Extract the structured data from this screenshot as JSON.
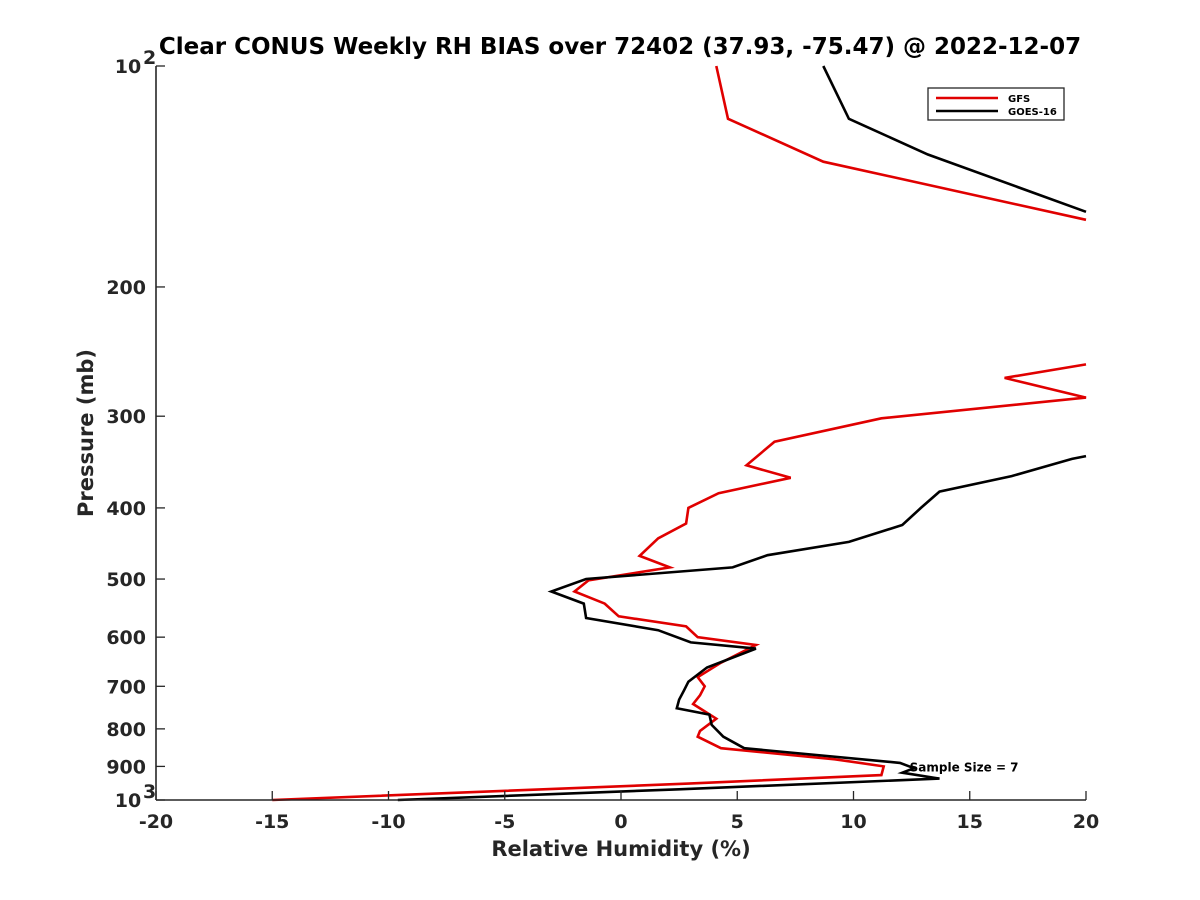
{
  "chart_data": {
    "type": "line",
    "title": "Clear CONUS Weekly RH BIAS over 72402 (37.93, -75.47) @ 2022-12-07",
    "xlabel": "Relative Humidity (%)",
    "ylabel": "Pressure (mb)",
    "xlim": [
      -20,
      20
    ],
    "ylim": [
      100,
      1000
    ],
    "yscale": "log",
    "y_reversed": true,
    "grid": false,
    "legend_position": "top-right",
    "x_ticks": [
      {
        "value": -20,
        "label": "-20"
      },
      {
        "value": -15,
        "label": "-15"
      },
      {
        "value": -10,
        "label": "-10"
      },
      {
        "value": -5,
        "label": "-5"
      },
      {
        "value": 0,
        "label": "0"
      },
      {
        "value": 5,
        "label": "5"
      },
      {
        "value": 10,
        "label": "10"
      },
      {
        "value": 15,
        "label": "15"
      },
      {
        "value": 20,
        "label": "20"
      }
    ],
    "y_ticks": [
      {
        "value": 100,
        "label": "10",
        "sup": "2"
      },
      {
        "value": 200,
        "label": "200"
      },
      {
        "value": 300,
        "label": "300"
      },
      {
        "value": 400,
        "label": "400"
      },
      {
        "value": 500,
        "label": "500"
      },
      {
        "value": 600,
        "label": "600"
      },
      {
        "value": 700,
        "label": "700"
      },
      {
        "value": 800,
        "label": "800"
      },
      {
        "value": 900,
        "label": "900"
      },
      {
        "value": 1000,
        "label": "10",
        "sup": "3"
      }
    ],
    "series": [
      {
        "name": "GFS",
        "color": "#e00000",
        "points": [
          {
            "x": 4.1,
            "y": 100
          },
          {
            "x": 4.6,
            "y": 118
          },
          {
            "x": 8.7,
            "y": 135
          },
          {
            "x": 20.0,
            "y": 162
          },
          {
            "x": null,
            "y": null
          },
          {
            "x": 20.0,
            "y": 255
          },
          {
            "x": 16.5,
            "y": 266
          },
          {
            "x": 20.0,
            "y": 283
          },
          {
            "x": 11.2,
            "y": 302
          },
          {
            "x": 6.6,
            "y": 325
          },
          {
            "x": 5.4,
            "y": 350
          },
          {
            "x": 7.3,
            "y": 364
          },
          {
            "x": 4.2,
            "y": 382
          },
          {
            "x": 2.9,
            "y": 400
          },
          {
            "x": 2.8,
            "y": 420
          },
          {
            "x": 1.6,
            "y": 440
          },
          {
            "x": 0.8,
            "y": 465
          },
          {
            "x": 2.1,
            "y": 482
          },
          {
            "x": -1.4,
            "y": 502
          },
          {
            "x": -2.0,
            "y": 520
          },
          {
            "x": -0.7,
            "y": 540
          },
          {
            "x": -0.1,
            "y": 562
          },
          {
            "x": 2.8,
            "y": 580
          },
          {
            "x": 3.3,
            "y": 600
          },
          {
            "x": 5.8,
            "y": 615
          },
          {
            "x": 4.3,
            "y": 650
          },
          {
            "x": 3.3,
            "y": 680
          },
          {
            "x": 3.6,
            "y": 700
          },
          {
            "x": 3.4,
            "y": 720
          },
          {
            "x": 3.1,
            "y": 740
          },
          {
            "x": 4.1,
            "y": 775
          },
          {
            "x": 3.4,
            "y": 805
          },
          {
            "x": 3.3,
            "y": 820
          },
          {
            "x": 4.3,
            "y": 850
          },
          {
            "x": 9.2,
            "y": 880
          },
          {
            "x": 11.3,
            "y": 900
          },
          {
            "x": 11.2,
            "y": 925
          },
          {
            "x": 2.9,
            "y": 950
          },
          {
            "x": -15.0,
            "y": 1000
          }
        ]
      },
      {
        "name": "GOES-16",
        "color": "#000000",
        "points": [
          {
            "x": 8.7,
            "y": 100
          },
          {
            "x": 9.8,
            "y": 118
          },
          {
            "x": 13.2,
            "y": 132
          },
          {
            "x": 20.0,
            "y": 158
          },
          {
            "x": null,
            "y": null
          },
          {
            "x": 20.0,
            "y": 340
          },
          {
            "x": 19.4,
            "y": 343
          },
          {
            "x": 16.8,
            "y": 362
          },
          {
            "x": 13.7,
            "y": 380
          },
          {
            "x": 12.9,
            "y": 400
          },
          {
            "x": 12.1,
            "y": 422
          },
          {
            "x": 9.8,
            "y": 445
          },
          {
            "x": 6.3,
            "y": 464
          },
          {
            "x": 4.8,
            "y": 482
          },
          {
            "x": -1.5,
            "y": 500
          },
          {
            "x": -3.0,
            "y": 520
          },
          {
            "x": -1.6,
            "y": 540
          },
          {
            "x": -1.5,
            "y": 565
          },
          {
            "x": 1.6,
            "y": 587
          },
          {
            "x": 3.0,
            "y": 610
          },
          {
            "x": 5.8,
            "y": 622
          },
          {
            "x": 3.7,
            "y": 660
          },
          {
            "x": 2.9,
            "y": 690
          },
          {
            "x": 2.7,
            "y": 710
          },
          {
            "x": 2.5,
            "y": 730
          },
          {
            "x": 2.4,
            "y": 750
          },
          {
            "x": 3.8,
            "y": 765
          },
          {
            "x": 3.9,
            "y": 790
          },
          {
            "x": 4.4,
            "y": 820
          },
          {
            "x": 5.3,
            "y": 850
          },
          {
            "x": 12.0,
            "y": 890
          },
          {
            "x": 12.6,
            "y": 905
          },
          {
            "x": 12.1,
            "y": 918
          },
          {
            "x": 13.7,
            "y": 935
          },
          {
            "x": 2.5,
            "y": 967
          },
          {
            "x": -9.6,
            "y": 1000
          }
        ]
      }
    ],
    "annotations": [
      {
        "text": "Sample Size = 7",
        "x": 12.5,
        "y": 900
      }
    ]
  }
}
